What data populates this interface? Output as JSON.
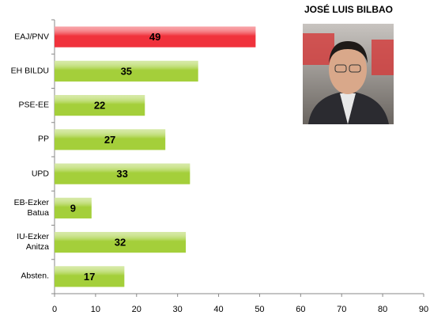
{
  "chart_data": {
    "type": "bar",
    "orientation": "horizontal",
    "title": "JOSÉ LUIS BILBAO",
    "categories": [
      "EAJ/PNV",
      "EH BILDU",
      "PSE-EE",
      "PP",
      "UPD",
      "EB-Ezker Batua",
      "IU-Ezker Anitza",
      "Absten."
    ],
    "values": [
      49,
      35,
      22,
      27,
      33,
      9,
      32,
      17
    ],
    "colors": [
      "#f0323c",
      "#a4cf3a",
      "#a4cf3a",
      "#a4cf3a",
      "#a4cf3a",
      "#a4cf3a",
      "#a4cf3a",
      "#a4cf3a"
    ],
    "xlim": [
      0,
      90
    ],
    "xticks": [
      0,
      10,
      20,
      30,
      40,
      50,
      60,
      70,
      80,
      90
    ],
    "grid": false
  }
}
